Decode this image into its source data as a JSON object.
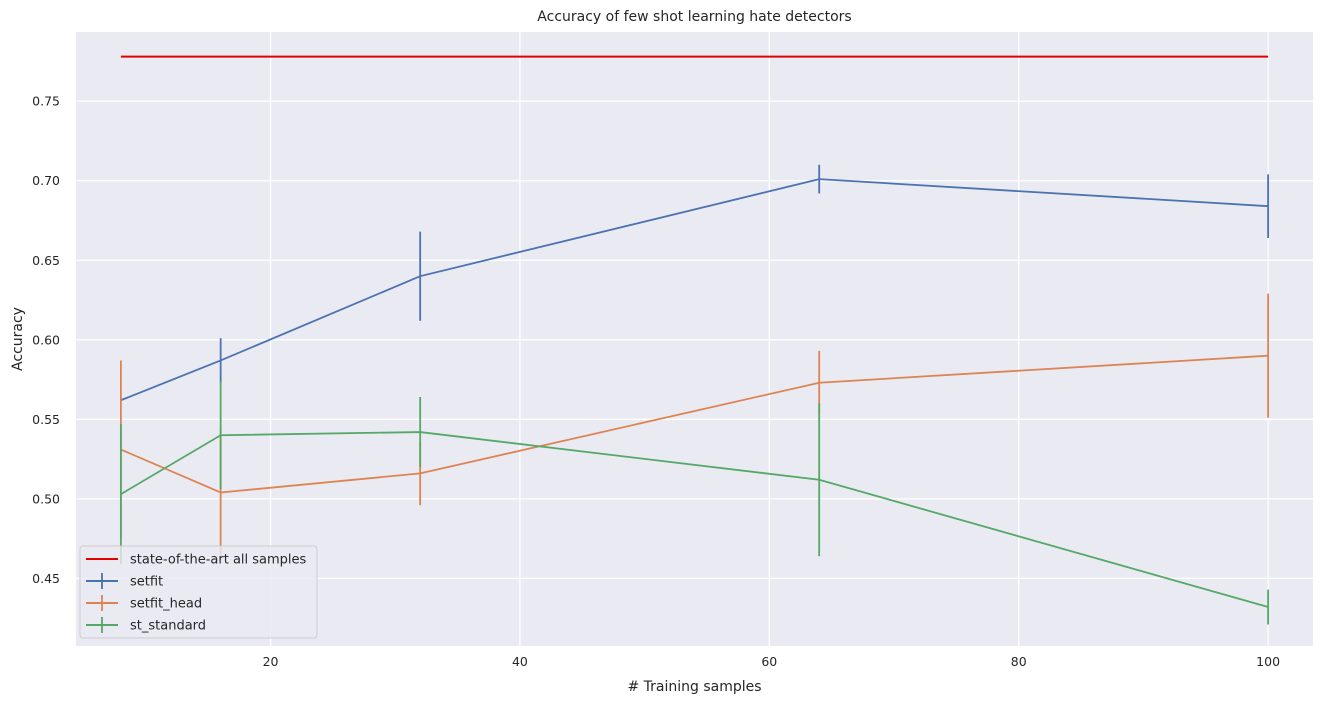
{
  "chart_data": {
    "type": "line",
    "title": "Accuracy of few shot learning hate detectors",
    "xlabel": "# Training samples",
    "ylabel": "Accuracy",
    "xlim": [
      4.4,
      103.6
    ],
    "ylim": [
      0.4075,
      0.7935
    ],
    "xticks": [
      20,
      40,
      60,
      80,
      100
    ],
    "yticks": [
      0.45,
      0.5,
      0.55,
      0.6,
      0.65,
      0.7,
      0.75
    ],
    "grid": true,
    "legend_position": "lower-left",
    "background_color": "#eaeaf2",
    "grid_color": "#ffffff",
    "baseline": {
      "name": "state-of-the-art all samples",
      "color": "#e50000",
      "x": [
        8,
        100
      ],
      "y": [
        0.778,
        0.778
      ]
    },
    "series": [
      {
        "name": "setfit",
        "color": "#4c72b0",
        "x": [
          8,
          16,
          32,
          64,
          100
        ],
        "y": [
          0.562,
          0.587,
          0.64,
          0.701,
          0.684
        ],
        "err": [
          0.0,
          0.014,
          0.028,
          0.009,
          0.02
        ]
      },
      {
        "name": "setfit_head",
        "color": "#dd8452",
        "x": [
          8,
          16,
          32,
          64,
          100
        ],
        "y": [
          0.531,
          0.504,
          0.516,
          0.573,
          0.59
        ],
        "err": [
          0.056,
          0.04,
          0.02,
          0.02,
          0.039
        ]
      },
      {
        "name": "st_standard",
        "color": "#55a868",
        "x": [
          8,
          16,
          32,
          64,
          100
        ],
        "y": [
          0.503,
          0.54,
          0.542,
          0.512,
          0.432
        ],
        "err": [
          0.044,
          0.034,
          0.022,
          0.048,
          0.011
        ]
      }
    ]
  }
}
